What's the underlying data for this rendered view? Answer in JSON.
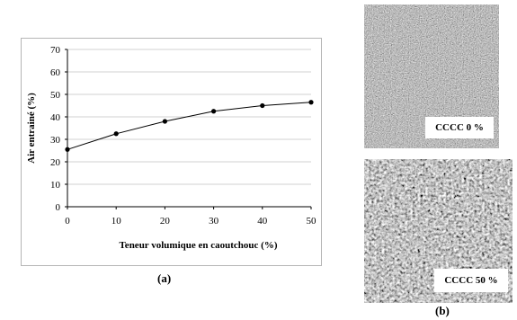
{
  "chart_data": {
    "type": "line",
    "x": [
      0,
      10,
      20,
      30,
      40,
      50
    ],
    "series": [
      {
        "values": [
          25.5,
          32.5,
          38,
          42.5,
          45,
          46.5
        ]
      }
    ],
    "xlabel": "Teneur volumique en caoutchouc (%)",
    "ylabel": "Air entrainé (%)",
    "xlim": [
      0,
      50
    ],
    "ylim": [
      0,
      70
    ],
    "xticks": [
      "0",
      "10",
      "20",
      "30",
      "40",
      "50"
    ],
    "yticks": [
      "0",
      "10",
      "20",
      "30",
      "40",
      "50",
      "60",
      "70"
    ],
    "grid": "horizontal",
    "marker": "circle",
    "color": "#000000"
  },
  "captions": {
    "a": "(a)",
    "b": "(b)"
  },
  "photos": {
    "top": {
      "label": "CCCC 0 %"
    },
    "bottom": {
      "label": "CCCC 50 %"
    }
  }
}
